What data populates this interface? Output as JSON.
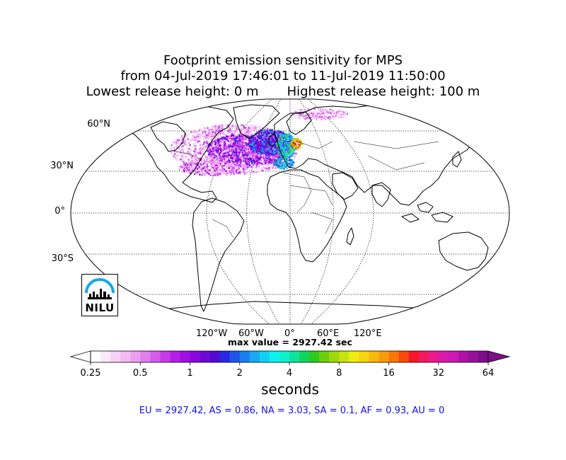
{
  "title": {
    "line1": "Footprint emission sensitivity for MPS",
    "line2": "from 04-Jul-2019 17:46:01 to 11-Jul-2019 11:50:00",
    "line3": "Lowest release height: 0 m       Highest release height: 100 m"
  },
  "map": {
    "projection": "robinson",
    "lat_labels": [
      "60°N",
      "30°N",
      "0°",
      "30°S"
    ],
    "lon_labels": [
      "120°W",
      "60°W",
      "0°",
      "60°E",
      "120°E"
    ]
  },
  "max_value_text": "max value = 2927.42 sec",
  "colorbar": {
    "tick_labels": [
      "0.25",
      "0.5",
      "1",
      "2",
      "4",
      "8",
      "16",
      "32",
      "64"
    ],
    "units": "seconds",
    "colors": [
      "#ffffff",
      "#fde9fb",
      "#f9d2f7",
      "#f3b9f2",
      "#ec9ff0",
      "#e27fee",
      "#d55cec",
      "#c83be9",
      "#b51ee6",
      "#a00fe2",
      "#8808dd",
      "#6f08d7",
      "#5409d0",
      "#2a28e6",
      "#1f55ea",
      "#1b7eee",
      "#18a8f2",
      "#12d0f4",
      "#0ff0f0",
      "#0ff0cc",
      "#10e39e",
      "#12d55f",
      "#2ec91f",
      "#6bcf0d",
      "#9ed90d",
      "#c7e30f",
      "#f0ec0f",
      "#f6d40f",
      "#f8b80e",
      "#f99c0c",
      "#fa780a",
      "#f94a0a",
      "#f7162a",
      "#f21a5f",
      "#ea1a8c",
      "#db1aa8",
      "#cc18b2",
      "#b012a8",
      "#95109b",
      "#7d0e8a"
    ]
  },
  "region_summary": "EU = 2927.42,  AS = 0.86,  NA = 3.03,  SA = 0.1,  AF = 0.93,  AU = 0",
  "logo": {
    "text": "NILU",
    "arc_color": "#1aa7e6"
  }
}
